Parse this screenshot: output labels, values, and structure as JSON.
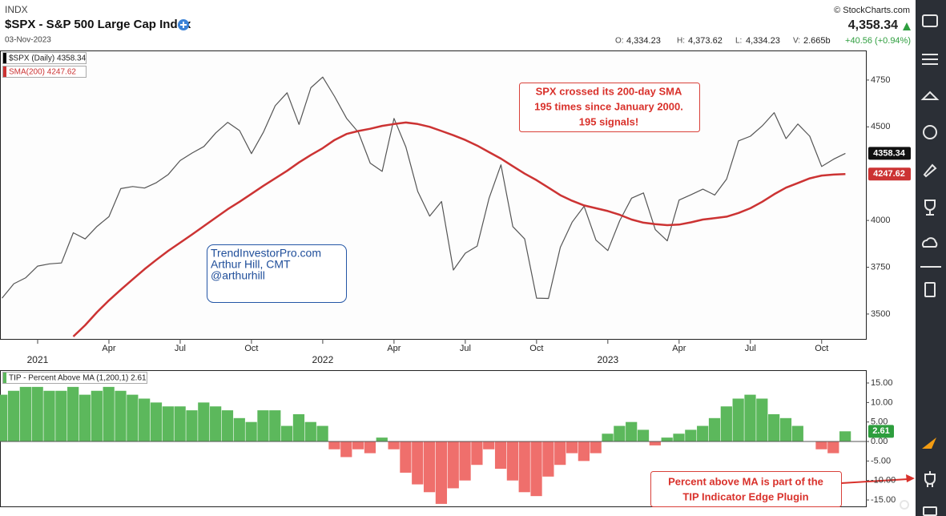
{
  "header": {
    "exchange": "INDX",
    "title": "$SPX - S&P 500 Large Cap Index",
    "date": "03-Nov-2023",
    "source": "© StockCharts.com",
    "last": "4,358.34",
    "quote": [
      {
        "label": "O:",
        "value": "4,334.23"
      },
      {
        "label": "H:",
        "value": "4,373.62"
      },
      {
        "label": "L:",
        "value": "4,334.23"
      },
      {
        "label": "V:",
        "value": "2.665b"
      }
    ],
    "change": "+40.56 (+0.94%)"
  },
  "chart_data": [
    {
      "type": "line",
      "categories": [
        null,
        null,
        null,
        "2021",
        null,
        null,
        null,
        null,
        null,
        "Apr",
        null,
        null,
        null,
        null,
        null,
        "Jul",
        null,
        null,
        null,
        null,
        null,
        "Oct",
        null,
        null,
        null,
        null,
        null,
        "2022",
        null,
        null,
        null,
        null,
        null,
        "Apr",
        null,
        null,
        null,
        null,
        null,
        "Jul",
        null,
        null,
        null,
        null,
        null,
        "Oct",
        null,
        null,
        null,
        null,
        null,
        "2023",
        null,
        null,
        null,
        null,
        null,
        "Apr",
        null,
        null,
        null,
        null,
        null,
        "Jul",
        null,
        null,
        null,
        null,
        null,
        "Oct",
        null,
        null
      ],
      "series": [
        {
          "name": "$SPX (Daily) 4358.34",
          "color": "#555555",
          "end_label": "4358.34",
          "values": [
            3585,
            3662,
            3694,
            3756,
            3768,
            3773,
            3934,
            3901,
            3968,
            4020,
            4170,
            4181,
            4173,
            4202,
            4246,
            4320,
            4360,
            4395,
            4468,
            4524,
            4480,
            4357,
            4471,
            4613,
            4682,
            4513,
            4709,
            4766,
            4662,
            4546,
            4471,
            4306,
            4262,
            4545,
            4392,
            4155,
            4023,
            4101,
            3735,
            3825,
            3863,
            4118,
            4297,
            3967,
            3901,
            3585,
            3583,
            3856,
            3991,
            4076,
            3895,
            3839,
            3999,
            4119,
            4147,
            3951,
            3891,
            4109,
            4137,
            4167,
            4136,
            4221,
            4425,
            4450,
            4505,
            4576,
            4437,
            4515,
            4450,
            4288,
            4327,
            4358.34
          ]
        },
        {
          "name": "SMA(200) 4247.62",
          "color": "#cc3333",
          "end_label": "4247.62",
          "values": [
            null,
            null,
            null,
            null,
            null,
            null,
            3380,
            3440,
            3510,
            3573,
            3630,
            3685,
            3740,
            3790,
            3838,
            3881,
            3925,
            3970,
            4015,
            4060,
            4100,
            4142,
            4185,
            4225,
            4265,
            4310,
            4350,
            4386,
            4430,
            4462,
            4478,
            4490,
            4505,
            4515,
            4523,
            4515,
            4500,
            4478,
            4455,
            4430,
            4400,
            4365,
            4330,
            4290,
            4250,
            4215,
            4175,
            4135,
            4105,
            4080,
            4065,
            4050,
            4030,
            4005,
            3988,
            3980,
            3975,
            3978,
            3990,
            4005,
            4012,
            4020,
            4040,
            4065,
            4100,
            4140,
            4175,
            4200,
            4225,
            4240,
            4245,
            4247.62
          ]
        }
      ],
      "ylim": [
        3367,
        4908
      ],
      "yticks": [
        3500,
        3750,
        4000,
        4500,
        4750
      ],
      "grid": false,
      "annotations": [
        {
          "lines": [
            "SPX crossed its 200-day SMA",
            "195 times since January 2000.",
            "195 signals!"
          ]
        },
        {
          "lines": [
            "TrendInvestorPro.com",
            "Arthur Hill, CMT",
            "@arthurhill"
          ]
        }
      ]
    },
    {
      "type": "bar",
      "title": "TIP - Percent Above MA (1,200,1) 2.61",
      "end_label": "2.61",
      "positive_color": "#5cb85c",
      "negative_color": "#ef6f6c",
      "values": [
        12,
        13,
        14,
        14,
        13,
        13,
        14,
        12,
        13,
        14,
        13,
        12,
        11,
        10,
        9,
        9,
        8,
        10,
        9,
        8,
        6,
        5,
        8,
        8,
        4,
        7,
        5,
        4,
        -2,
        -4,
        -2,
        -3,
        1,
        -2,
        -8,
        -11,
        -13,
        -16,
        -12,
        -10,
        -6,
        -2,
        -7,
        -10,
        -13,
        -14,
        -9,
        -6,
        -3,
        -5,
        -3,
        2,
        4,
        5,
        3,
        -1,
        1,
        2,
        3,
        4,
        6,
        9,
        11,
        12,
        11,
        7,
        6,
        4,
        0,
        -2,
        -3,
        2.61
      ],
      "ylim": [
        -16.64,
        18.29
      ],
      "yticks": [
        {
          "value": 15,
          "label": "15.00"
        },
        {
          "value": 10,
          "label": "10.00"
        },
        {
          "value": 5,
          "label": "5.00"
        },
        {
          "value": 0,
          "label": "0.00"
        },
        {
          "value": -5,
          "label": "-5.00"
        },
        {
          "value": -10,
          "label": "-10.00"
        },
        {
          "value": -15,
          "label": "-15.00"
        }
      ],
      "annotations": [
        {
          "lines": [
            "Percent above MA is part of the",
            "TIP Indicator Edge Plugin"
          ]
        }
      ]
    }
  ]
}
